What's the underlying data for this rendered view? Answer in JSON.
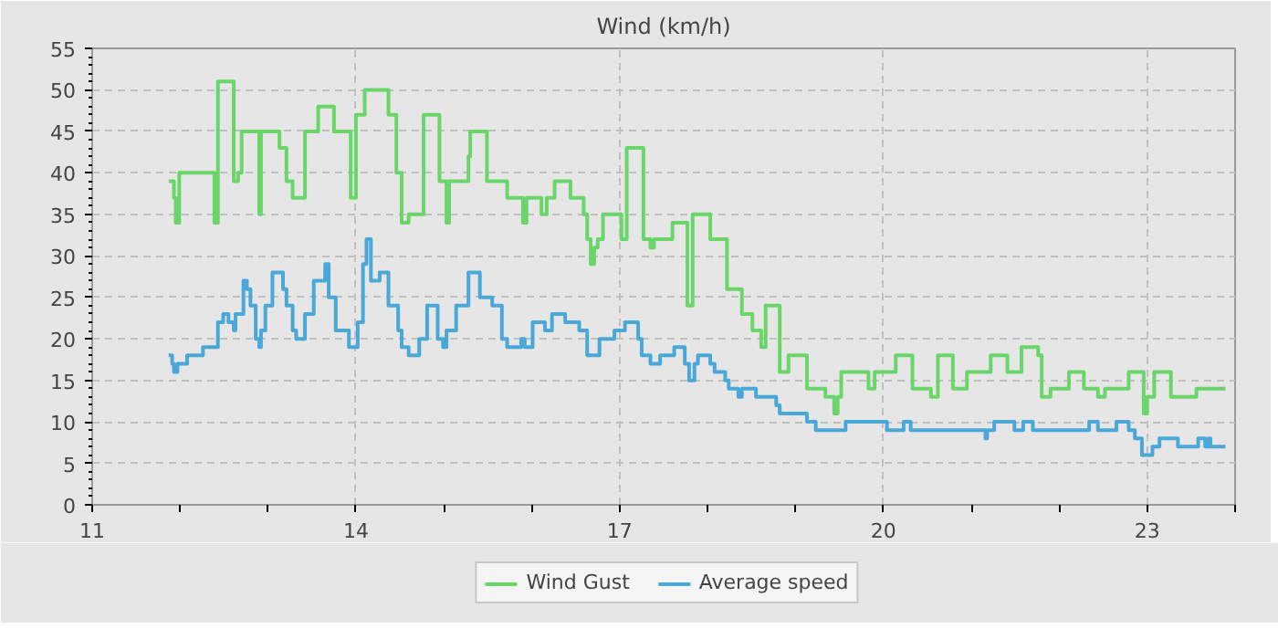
{
  "chart_data": {
    "type": "step",
    "title": "Wind (km/h)",
    "xlim": [
      11,
      24
    ],
    "xticks": [
      11,
      {
        "value": 12,
        "label": null
      },
      {
        "value": 13,
        "label": null
      },
      14,
      {
        "value": 15,
        "label": null
      },
      {
        "value": 16,
        "label": null
      },
      17,
      {
        "value": 18,
        "label": null
      },
      {
        "value": 19,
        "label": null
      },
      20,
      {
        "value": 21,
        "label": null
      },
      {
        "value": 22,
        "label": null
      },
      23,
      {
        "value": 24,
        "label": null
      }
    ],
    "ylim": [
      0,
      55
    ],
    "yticks": [
      0,
      5,
      10,
      15,
      20,
      25,
      30,
      35,
      40,
      45,
      50,
      55
    ],
    "grid": true,
    "legend": "bottom",
    "line_style": "solid",
    "marker": "none",
    "series": [
      {
        "name": "Wind Gust",
        "color": "#6ad66a",
        "x": [
          11.87,
          11.93,
          11.95,
          11.99,
          12.39,
          12.43,
          12.61,
          12.66,
          12.7,
          12.9,
          12.92,
          13.13,
          13.21,
          13.28,
          13.42,
          13.57,
          13.75,
          13.94,
          14.0,
          14.1,
          14.37,
          14.46,
          14.52,
          14.6,
          14.77,
          14.95,
          15.03,
          15.06,
          15.28,
          15.3,
          15.49,
          15.72,
          15.9,
          15.94,
          16.11,
          16.17,
          16.26,
          16.44,
          16.59,
          16.63,
          16.67,
          16.71,
          16.75,
          16.81,
          17.02,
          17.08,
          17.27,
          17.35,
          17.39,
          17.6,
          17.77,
          17.83,
          18.03,
          18.22,
          18.39,
          18.51,
          18.61,
          18.66,
          18.82,
          18.92,
          19.13,
          19.34,
          19.44,
          19.48,
          19.52,
          19.83,
          19.9,
          20.14,
          20.33,
          20.54,
          20.62,
          20.79,
          20.95,
          21.22,
          21.41,
          21.57,
          21.76,
          21.8,
          21.9,
          22.11,
          22.28,
          22.44,
          22.52,
          22.79,
          22.96,
          23.0,
          23.08,
          23.27,
          23.56,
          23.89
        ],
        "values": [
          39,
          37,
          34,
          40,
          34,
          51,
          39,
          40,
          45,
          35,
          45,
          43,
          39,
          37,
          45,
          48,
          45,
          37,
          47,
          50,
          47,
          40,
          34,
          35,
          47,
          39,
          34,
          39,
          42,
          45,
          39,
          37,
          34,
          37,
          35,
          37,
          39,
          37,
          35,
          32,
          29,
          31,
          32,
          35,
          32,
          43,
          32,
          31,
          32,
          34,
          24,
          35,
          32,
          26,
          23,
          21,
          19,
          24,
          16,
          18,
          14,
          13,
          11,
          13,
          16,
          14,
          16,
          18,
          14,
          13,
          18,
          14,
          16,
          18,
          16,
          19,
          18,
          13,
          14,
          16,
          14,
          13,
          14,
          16,
          11,
          13,
          16,
          13,
          14,
          14
        ]
      },
      {
        "name": "Average speed",
        "color": "#4aa8d8",
        "x": [
          11.87,
          11.91,
          11.93,
          11.97,
          12.08,
          12.26,
          12.43,
          12.49,
          12.55,
          12.61,
          12.63,
          12.72,
          12.76,
          12.8,
          12.86,
          12.9,
          12.92,
          12.97,
          13.05,
          13.17,
          13.21,
          13.28,
          13.32,
          13.42,
          13.52,
          13.65,
          13.69,
          13.77,
          13.92,
          14.02,
          14.08,
          14.12,
          14.17,
          14.27,
          14.37,
          14.48,
          14.52,
          14.6,
          14.72,
          14.81,
          14.93,
          14.99,
          15.03,
          15.14,
          15.28,
          15.41,
          15.55,
          15.66,
          15.72,
          15.88,
          15.92,
          16.01,
          16.15,
          16.23,
          16.38,
          16.54,
          16.63,
          16.77,
          16.94,
          17.06,
          17.21,
          17.25,
          17.35,
          17.46,
          17.62,
          17.74,
          17.79,
          17.85,
          17.89,
          18.03,
          18.08,
          18.2,
          18.24,
          18.35,
          18.39,
          18.55,
          18.78,
          18.82,
          19.13,
          19.23,
          19.57,
          20.04,
          20.23,
          20.31,
          21.16,
          21.18,
          21.26,
          21.49,
          21.59,
          21.7,
          22.34,
          22.44,
          22.65,
          22.79,
          22.86,
          22.94,
          23.06,
          23.14,
          23.35,
          23.58,
          23.66,
          23.7,
          23.72,
          23.89
        ],
        "values": [
          18,
          17,
          16,
          17,
          18,
          19,
          22,
          23,
          22,
          21,
          23,
          27,
          26,
          24,
          20,
          19,
          21,
          24,
          28,
          26,
          24,
          21,
          20,
          23,
          27,
          29,
          25,
          21,
          19,
          22,
          29,
          32,
          27,
          28,
          24,
          21,
          19,
          18,
          20,
          24,
          20,
          19,
          21,
          24,
          28,
          25,
          24,
          20,
          19,
          20,
          19,
          22,
          21,
          23,
          22,
          21,
          18,
          20,
          21,
          22,
          20,
          18,
          17,
          18,
          19,
          17,
          15,
          17,
          18,
          17,
          16,
          15,
          14,
          13,
          14,
          13,
          12,
          11,
          10,
          9,
          10,
          9,
          10,
          9,
          8,
          9,
          10,
          9,
          10,
          9,
          10,
          9,
          10,
          9,
          8,
          6,
          7,
          8,
          7,
          8,
          7,
          8,
          7,
          7
        ]
      }
    ]
  }
}
